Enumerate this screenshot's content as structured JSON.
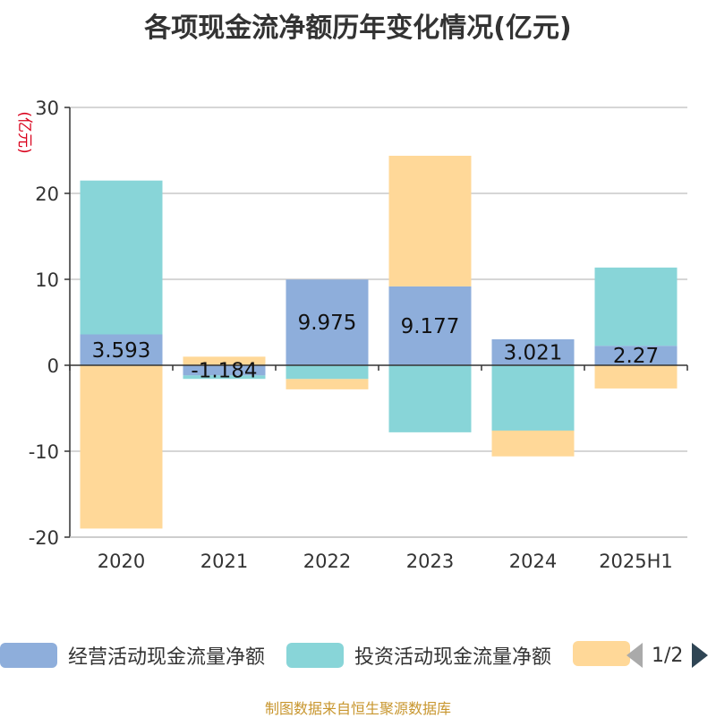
{
  "title": "各项现金流净额历年变化情况(亿元)",
  "source": "制图数据来自恒生聚源数据库",
  "legend": {
    "items": [
      {
        "name": "经营活动现金流量净额",
        "color": "#8eaedb"
      },
      {
        "name": "投资活动现金流量净额",
        "color": "#88d5d8"
      },
      {
        "name": "",
        "color": "#ffd898"
      }
    ],
    "page": "1/2"
  },
  "chart_data": {
    "type": "bar",
    "stacked": true,
    "unit_label": "(亿元)",
    "categories": [
      "2020",
      "2021",
      "2022",
      "2023",
      "2024",
      "2025H1"
    ],
    "ylim": [
      -20,
      30
    ],
    "yticks": [
      30,
      20,
      10,
      0,
      -10,
      -20
    ],
    "grid": true,
    "legend_position": "bottom",
    "series": [
      {
        "name": "经营活动现金流量净额",
        "color": "#8eaedb",
        "values": [
          3.593,
          -1.184,
          9.975,
          9.177,
          3.021,
          2.27
        ],
        "labels": [
          "3.593",
          "-1.184",
          "9.975",
          "9.177",
          "3.021",
          "2.27"
        ]
      },
      {
        "name": "投资活动现金流量净额",
        "color": "#88d5d8",
        "values": [
          17.9,
          -0.4,
          -1.6,
          -7.8,
          -7.6,
          9.1
        ]
      },
      {
        "name": "",
        "color": "#ffd898",
        "values": [
          -19.0,
          1.0,
          -1.2,
          15.2,
          -3.0,
          -2.7
        ]
      }
    ]
  }
}
